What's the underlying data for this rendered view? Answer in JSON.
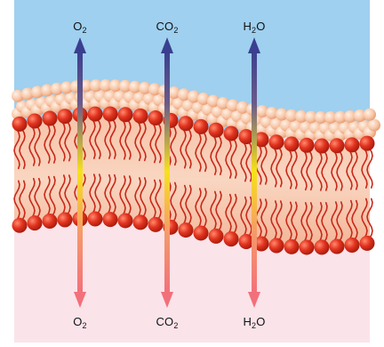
{
  "molecules": [
    {
      "id": "o2",
      "top_label": {
        "base": "O",
        "sub": "2",
        "tail": ""
      },
      "bottom_label": {
        "base": "O",
        "sub": "2",
        "tail": ""
      }
    },
    {
      "id": "co2",
      "top_label": {
        "base": "CO",
        "sub": "2",
        "tail": ""
      },
      "bottom_label": {
        "base": "CO",
        "sub": "2",
        "tail": ""
      }
    },
    {
      "id": "h2o",
      "top_label": {
        "base": "H",
        "sub": "2",
        "tail": "O"
      },
      "bottom_label": {
        "base": "H",
        "sub": "2",
        "tail": "O"
      }
    }
  ],
  "colors": {
    "extracellular": "#9fd0ef",
    "intracellular": "#fbe3ea",
    "membrane_core": "#f6c8b0",
    "phospholipid_head": "#e2331f",
    "tail": "#c8281a",
    "arrow_top": "#3a3f8f",
    "arrow_mid": "#f6e21a",
    "arrow_bottom": "#f2707a"
  }
}
